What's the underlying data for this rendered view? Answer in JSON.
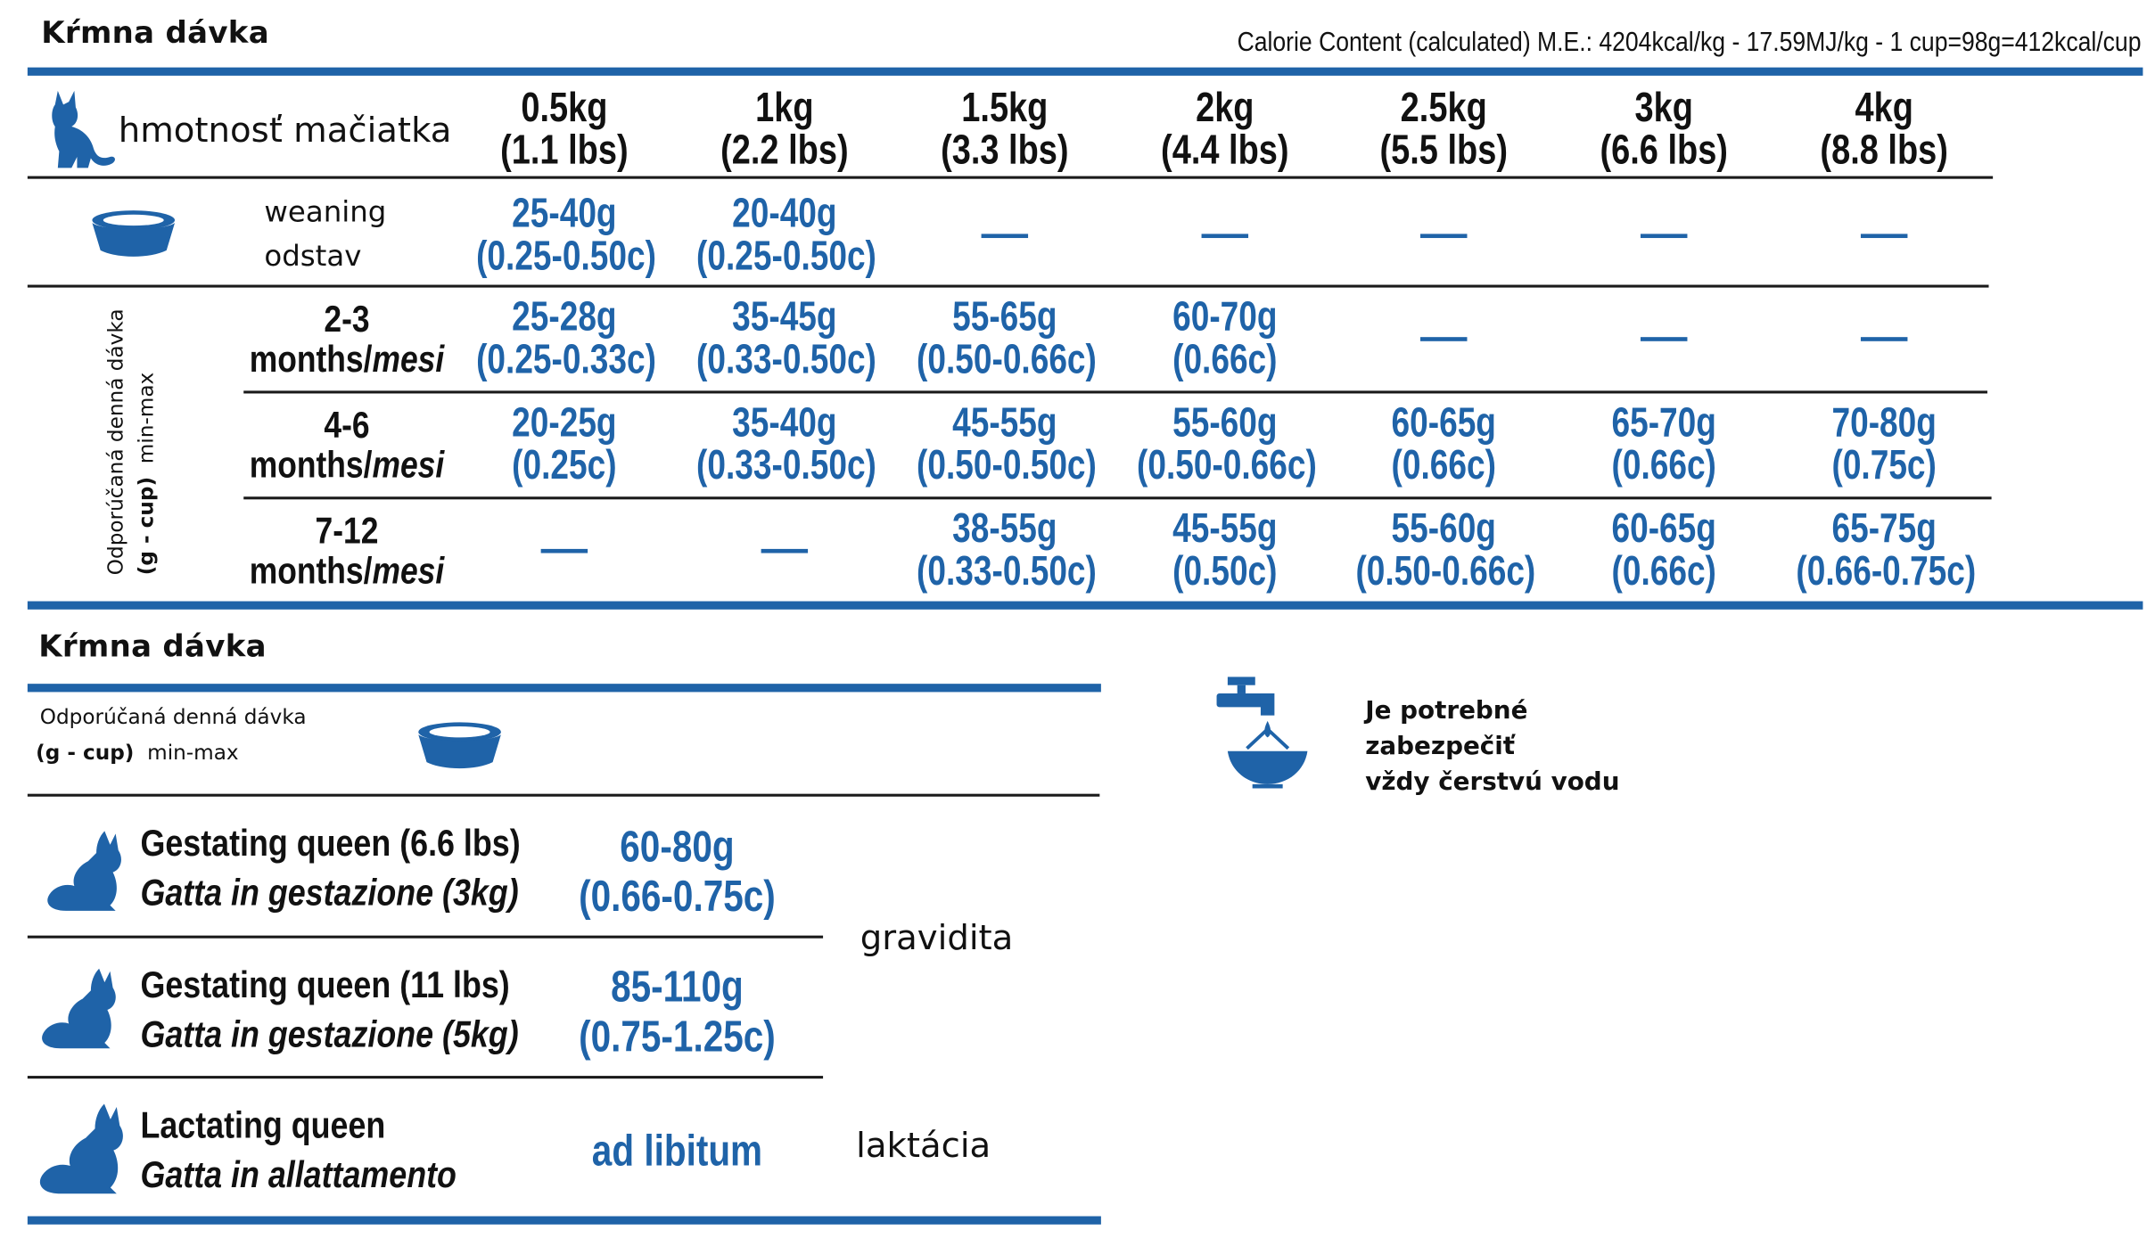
{
  "title": "Kŕmna dávka",
  "calorie_note": "Calorie Content (calculated) M.E.: 4204kcal/kg - 17.59MJ/kg - 1 cup=98g=412kcal/cup",
  "kitten_table": {
    "weight_label": "hmotnosť mačiatka",
    "weights": [
      {
        "kg": "0.5kg",
        "lbs": "(1.1 lbs)"
      },
      {
        "kg": "1kg",
        "lbs": "(2.2 lbs)"
      },
      {
        "kg": "1.5kg",
        "lbs": "(3.3 lbs)"
      },
      {
        "kg": "2kg",
        "lbs": "(4.4 lbs)"
      },
      {
        "kg": "2.5kg",
        "lbs": "(5.5 lbs)"
      },
      {
        "kg": "3kg",
        "lbs": "(6.6 lbs)"
      },
      {
        "kg": "4kg",
        "lbs": "(8.8 lbs)"
      }
    ],
    "weaning": {
      "label_en": "weaning",
      "label_sk": "odstav",
      "cells": [
        {
          "g": "25-40g",
          "c": "(0.25-0.50c)"
        },
        {
          "g": "20-40g",
          "c": "(0.25-0.50c)"
        },
        null,
        null,
        null,
        null,
        null
      ]
    },
    "side_label": {
      "line1": "Odporúčaná denná dávka",
      "line2_bold": "(g - cup)",
      "line2": "min-max"
    },
    "age_rows": [
      {
        "range": "2-3",
        "unit": "months/",
        "unit_it": "mesi",
        "cells": [
          {
            "g": "25-28g",
            "c": "(0.25-0.33c)"
          },
          {
            "g": "35-45g",
            "c": "(0.33-0.50c)"
          },
          {
            "g": "55-65g",
            "c": "(0.50-0.66c)"
          },
          {
            "g": "60-70g",
            "c": "(0.66c)"
          },
          null,
          null,
          null
        ]
      },
      {
        "range": "4-6",
        "unit": "months/",
        "unit_it": "mesi",
        "cells": [
          {
            "g": "20-25g",
            "c": "(0.25c)"
          },
          {
            "g": "35-40g",
            "c": "(0.33-0.50c)"
          },
          {
            "g": "45-55g",
            "c": "(0.50-0.50c)"
          },
          {
            "g": "55-60g",
            "c": "(0.50-0.66c)"
          },
          {
            "g": "60-65g",
            "c": "(0.66c)"
          },
          {
            "g": "65-70g",
            "c": "(0.66c)"
          },
          {
            "g": "70-80g",
            "c": "(0.75c)"
          }
        ]
      },
      {
        "range": "7-12",
        "unit": "months/",
        "unit_it": "mesi",
        "cells": [
          null,
          null,
          {
            "g": "38-55g",
            "c": "(0.33-0.50c)"
          },
          {
            "g": "45-55g",
            "c": "(0.50c)"
          },
          {
            "g": "55-60g",
            "c": "(0.50-0.66c)"
          },
          {
            "g": "60-65g",
            "c": "(0.66c)"
          },
          {
            "g": "65-75g",
            "c": "(0.66-0.75c)"
          }
        ]
      }
    ]
  },
  "queen_section": {
    "title": "Kŕmna dávka",
    "label_line1": "Odporúčaná denná dávka",
    "label_line2_bold": "(g - cup)",
    "label_line2": "min-max",
    "rows": [
      {
        "name_en": "Gestating queen (6.6 lbs)",
        "name_it": "Gatta in gestazione (3kg)",
        "g": "60-80g",
        "c": "(0.66-0.75c)"
      },
      {
        "name_en": "Gestating queen (11 lbs)",
        "name_it": "Gatta in gestazione (5kg)",
        "g": "85-110g",
        "c": "(0.75-1.25c)"
      },
      {
        "name_en": "Lactating queen",
        "name_it": "Gatta in allattamento",
        "value": "ad libitum"
      }
    ],
    "note_gestation": "gravidita",
    "note_lactation": "laktácia"
  },
  "water_note": {
    "line1": "Je potrebné",
    "line2": "zabezpečiť",
    "line3": "vždy čerstvú vodu"
  },
  "colors": {
    "accent": "#1f63a8",
    "text": "#111111"
  }
}
